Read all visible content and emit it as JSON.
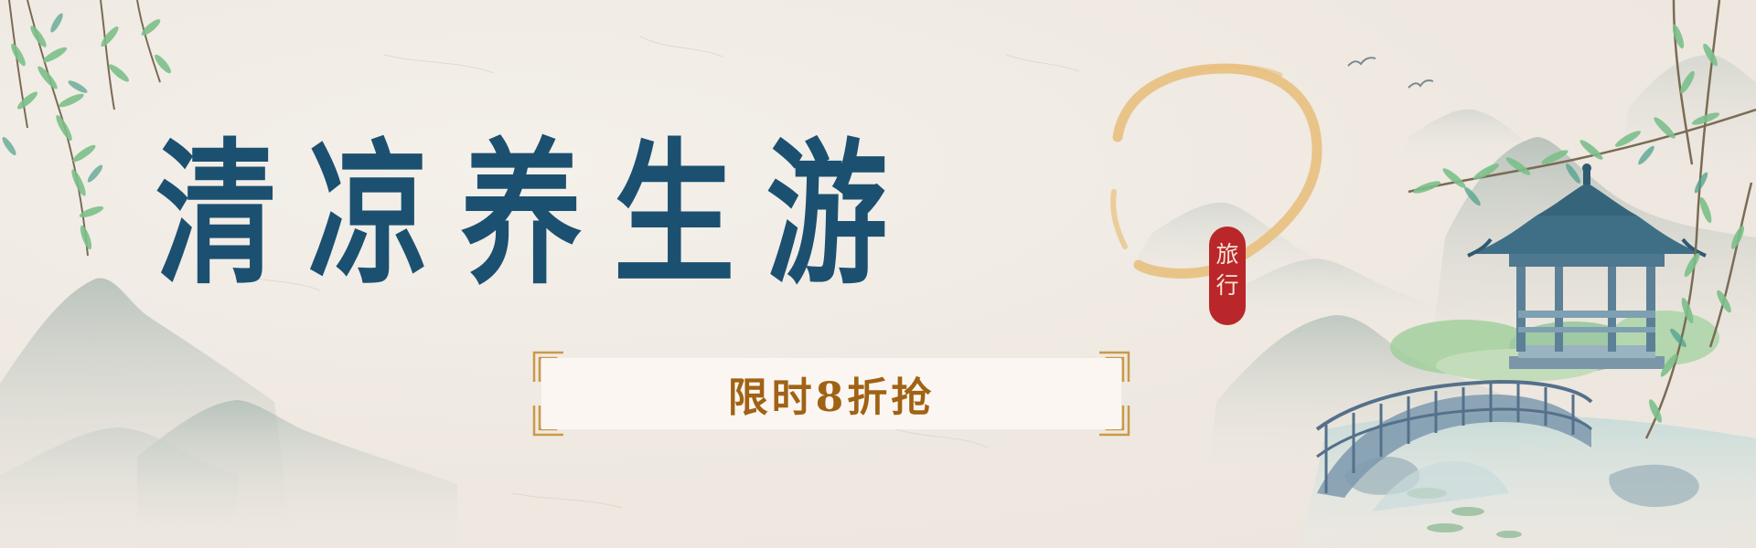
{
  "banner": {
    "title": "清凉养生游",
    "seal_chars": [
      "旅",
      "行"
    ],
    "promo_text": "限时8折抢"
  },
  "colors": {
    "background": "#efeae3",
    "title": "#1c5070",
    "promo_text": "#a06214",
    "promo_frame": "#c99a48",
    "seal": "#b9272a",
    "seal_text": "#f6e3d8",
    "sun_ring": "#e8c07e",
    "mountains": "#b6c2bb",
    "willow_leaves": "#7cc08a",
    "pavilion_roof": "#3e6f86",
    "bridge": "#6f8fa6",
    "water": "#c9ddd8"
  },
  "icons": [
    "willow-branch-icon",
    "pavilion-icon",
    "bridge-icon",
    "bird-icon",
    "sun-ring-icon",
    "seal-stamp-icon",
    "fret-corner-icon"
  ]
}
